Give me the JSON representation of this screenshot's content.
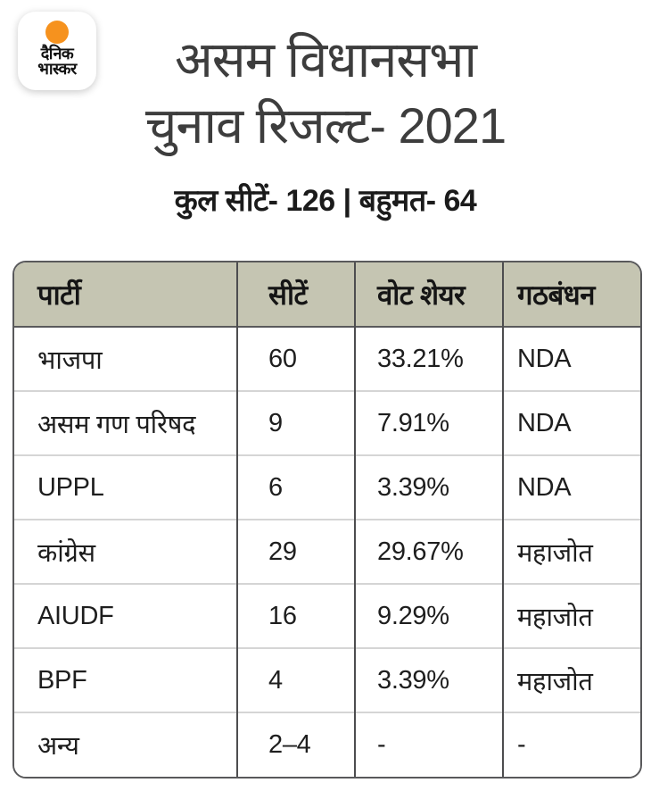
{
  "logo": {
    "brand": "dainik-bhaskar",
    "line1": "दैनिक",
    "line2": "भास्कर",
    "dot_color": "#f6921e"
  },
  "header": {
    "title_line1": "असम विधानसभा",
    "title_line2": "चुनाव रिजल्ट- 2021",
    "subtitle": "कुल सीटें- 126 | बहुमत- 64"
  },
  "chart_data": {
    "type": "table",
    "title": "असम विधानसभा चुनाव रिजल्ट- 2021",
    "subtitle": "कुल सीटें- 126 | बहुमत- 64",
    "total_seats": 126,
    "majority": 64,
    "columns": [
      "पार्टी",
      "सीटें",
      "वोट शेयर",
      "गठबंधन"
    ],
    "rows": [
      {
        "party": "भाजपा",
        "seats": "60",
        "vote_share": "33.21%",
        "alliance": "NDA"
      },
      {
        "party": "असम गण परिषद",
        "seats": "9",
        "vote_share": "7.91%",
        "alliance": "NDA"
      },
      {
        "party": "UPPL",
        "seats": "6",
        "vote_share": "3.39%",
        "alliance": "NDA"
      },
      {
        "party": "कांग्रेस",
        "seats": "29",
        "vote_share": "29.67%",
        "alliance": "महाजोत"
      },
      {
        "party": "AIUDF",
        "seats": "16",
        "vote_share": "9.29%",
        "alliance": "महाजोत"
      },
      {
        "party": "BPF",
        "seats": "4",
        "vote_share": "3.39%",
        "alliance": "महाजोत"
      },
      {
        "party": "अन्य",
        "seats": "2–4",
        "vote_share": "-",
        "alliance": "-"
      }
    ],
    "colors": {
      "header_bg": "#c5c5b2",
      "outer_border": "#59595b",
      "column_divider": "#4d4d4f",
      "row_divider": "#d5d5d5",
      "title_text": "#3d3d3d",
      "logo_dot": "#f6921e"
    }
  }
}
